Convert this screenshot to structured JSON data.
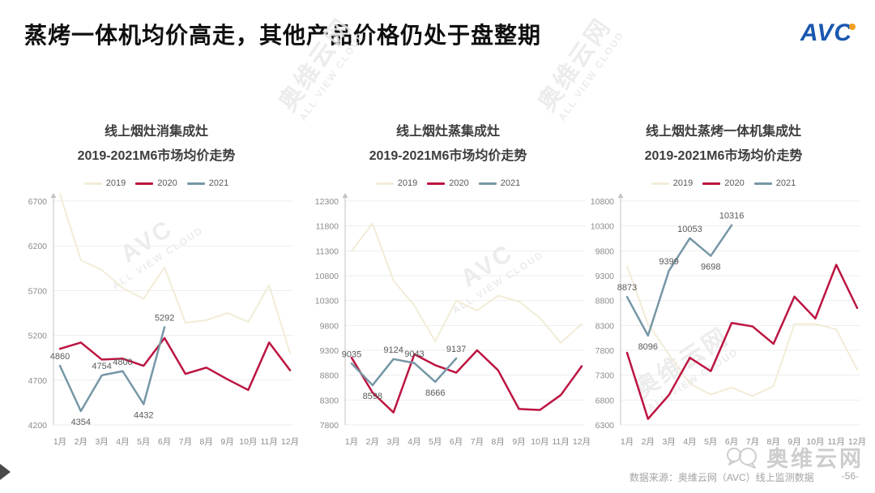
{
  "header": {
    "title": "蒸烤一体机均价高走，其他产品价格仍处于盘整期",
    "logo_text": "AVC"
  },
  "colors": {
    "s2019": "#f2ecd7",
    "s2020": "#bc1440",
    "s2021": "#7697a6",
    "grid": "#ededed",
    "axis": "#c3c3c3",
    "tick": "#8c8c8c",
    "label": "#595959",
    "logo_blue": "#1a57b0",
    "logo_orange": "#f0a01e"
  },
  "watermark": {
    "brand": "AVC",
    "name": "奥维云网",
    "sub": "ALL VIEW CLOUD"
  },
  "chart_data": [
    {
      "type": "line",
      "title_line1": "线上烟灶消集成灶",
      "title_line2": "2019-2021M6市场均价走势",
      "legend": [
        "2019",
        "2020",
        "2021"
      ],
      "categories": [
        "1月",
        "2月",
        "3月",
        "4月",
        "5月",
        "6月",
        "7月",
        "8月",
        "9月",
        "10月",
        "11月",
        "12月"
      ],
      "ylim": [
        4200,
        6700
      ],
      "ytick_step": 500,
      "grid": true,
      "legend_position": "top",
      "series": [
        {
          "name": "2019",
          "values": [
            6780,
            6040,
            5930,
            5730,
            5610,
            5960,
            5340,
            5370,
            5450,
            5350,
            5760,
            5000
          ]
        },
        {
          "name": "2020",
          "values": [
            5050,
            5120,
            4930,
            4940,
            4860,
            5170,
            4770,
            4840,
            4710,
            4590,
            5120,
            4810
          ]
        },
        {
          "name": "2021",
          "values": [
            4860,
            4354,
            4754,
            4800,
            4432,
            5292
          ],
          "show_labels": true,
          "label_side": [
            "up",
            "down",
            "up",
            "up",
            "down",
            "up"
          ]
        }
      ]
    },
    {
      "type": "line",
      "title_line1": "线上烟灶蒸集成灶",
      "title_line2": "2019-2021M6市场均价走势",
      "legend": [
        "2019",
        "2020",
        "2021"
      ],
      "categories": [
        "1月",
        "2月",
        "3月",
        "4月",
        "5月",
        "6月",
        "7月",
        "8月",
        "9月",
        "10月",
        "11月",
        "12月"
      ],
      "ylim": [
        7800,
        12300
      ],
      "ytick_step": 500,
      "grid": true,
      "legend_position": "top",
      "series": [
        {
          "name": "2019",
          "values": [
            11300,
            11850,
            10700,
            10200,
            9480,
            10300,
            10100,
            10400,
            10280,
            9950,
            9450,
            9830
          ]
        },
        {
          "name": "2020",
          "values": [
            9150,
            8450,
            8050,
            9220,
            9000,
            8850,
            9300,
            8900,
            8120,
            8100,
            8400,
            8980
          ]
        },
        {
          "name": "2021",
          "values": [
            9035,
            8598,
            9124,
            9043,
            8666,
            9137
          ],
          "show_labels": true,
          "label_side": [
            "up",
            "down",
            "up",
            "up",
            "down",
            "up"
          ]
        }
      ]
    },
    {
      "type": "line",
      "title_line1": "线上烟灶蒸烤一体机集成灶",
      "title_line2": "2019-2021M6市场均价走势",
      "legend": [
        "2019",
        "2020",
        "2021"
      ],
      "categories": [
        "1月",
        "2月",
        "3月",
        "4月",
        "5月",
        "6月",
        "7月",
        "8月",
        "9月",
        "10月",
        "11月",
        "12月"
      ],
      "ylim": [
        6300,
        10800
      ],
      "ytick_step": 500,
      "grid": true,
      "legend_position": "top",
      "series": [
        {
          "name": "2019",
          "values": [
            9490,
            8330,
            7720,
            7130,
            6910,
            7050,
            6880,
            7080,
            8330,
            8330,
            8220,
            7410
          ]
        },
        {
          "name": "2020",
          "values": [
            7750,
            6420,
            6900,
            7650,
            7380,
            8350,
            8280,
            7930,
            8880,
            8440,
            9520,
            8650
          ]
        },
        {
          "name": "2021",
          "values": [
            8873,
            8096,
            9399,
            10053,
            9698,
            10316
          ],
          "show_labels": true,
          "label_side": [
            "up",
            "down",
            "up",
            "up",
            "down",
            "up"
          ]
        }
      ]
    }
  ],
  "footer": {
    "source": "数据来源：奥维云网（AVC）线上监测数据",
    "page": "-56-",
    "watermark_logo": "奥维云网"
  }
}
